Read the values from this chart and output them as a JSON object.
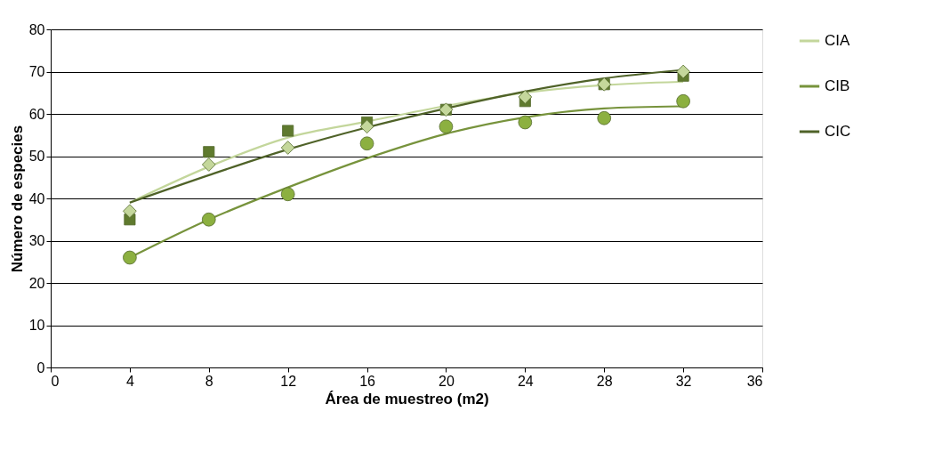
{
  "chart_data": {
    "type": "scatter",
    "xlabel": "Área de muestreo (m2)",
    "ylabel": "Número de especies",
    "xlim": [
      0,
      36
    ],
    "xticks": [
      0,
      4,
      8,
      12,
      16,
      20,
      24,
      28,
      32,
      36
    ],
    "ylim": [
      0,
      80
    ],
    "yticks": [
      0,
      10,
      20,
      30,
      40,
      50,
      60,
      70,
      80
    ],
    "grid": "y",
    "legend": "right",
    "series": [
      {
        "marker": "diamond",
        "color": "#c4d79b",
        "x": [
          4,
          8,
          12,
          16,
          20,
          24,
          28,
          32
        ],
        "values": [
          37,
          48,
          52,
          57,
          61,
          64,
          67,
          70
        ]
      },
      {
        "marker": "circle",
        "color": "#8cb040",
        "x": [
          4,
          8,
          12,
          16,
          20,
          24,
          28,
          32
        ],
        "values": [
          26,
          35,
          41,
          53,
          57,
          58,
          59,
          63
        ]
      },
      {
        "marker": "square",
        "color": "#5f7a2e",
        "x": [
          4,
          8,
          12,
          16,
          20,
          24,
          28,
          32
        ],
        "values": [
          35,
          51,
          56,
          58,
          61,
          63,
          67,
          69
        ]
      },
      {
        "type": "line",
        "name": "CIA",
        "marker": "none",
        "color": "#c3d69b",
        "x": [
          4,
          8,
          12,
          16,
          20,
          24,
          28,
          32
        ],
        "values": [
          39,
          47.5,
          54.4,
          58.2,
          61.9,
          65,
          66.8,
          67.6
        ]
      },
      {
        "type": "line",
        "name": "CIB",
        "marker": "none",
        "color": "#77933c",
        "x": [
          4,
          8,
          12,
          16,
          20,
          24,
          28,
          32
        ],
        "values": [
          26,
          35,
          42.6,
          49.5,
          55.3,
          59.2,
          61.3,
          61.8
        ]
      },
      {
        "type": "line",
        "name": "CIC",
        "marker": "none",
        "color": "#4f6228",
        "x": [
          4,
          8,
          12,
          16,
          20,
          24,
          28,
          32
        ],
        "values": [
          39,
          45.5,
          51.6,
          56.8,
          61.3,
          65.3,
          68.4,
          70.4
        ]
      }
    ]
  }
}
